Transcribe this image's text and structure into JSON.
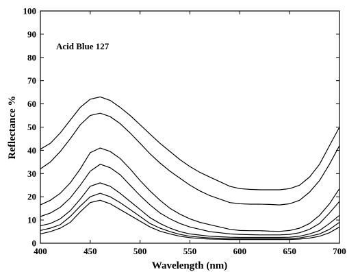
{
  "chart_data": {
    "type": "line",
    "title": "",
    "annotation": "Acid Blue 127",
    "xlabel": "Wavelength (nm)",
    "ylabel": "Reflectance %",
    "xlim": [
      400,
      700
    ],
    "ylim": [
      0,
      100
    ],
    "xticks": [
      400,
      450,
      500,
      550,
      600,
      650,
      700
    ],
    "yticks": [
      0,
      10,
      20,
      30,
      40,
      50,
      60,
      70,
      80,
      90,
      100
    ],
    "grid": false,
    "legend": "none",
    "x": [
      400,
      410,
      420,
      430,
      440,
      450,
      460,
      470,
      480,
      490,
      500,
      510,
      520,
      530,
      540,
      550,
      560,
      570,
      580,
      590,
      600,
      610,
      620,
      630,
      640,
      650,
      660,
      670,
      680,
      690,
      700
    ],
    "series": [
      {
        "values": [
          40.5,
          43,
          47.5,
          53,
          58.5,
          62,
          63,
          61.5,
          58.5,
          55,
          51,
          47,
          43,
          39.5,
          36,
          33,
          30.5,
          28.5,
          26.5,
          24.5,
          23.5,
          23.2,
          23,
          23,
          23,
          23.5,
          25,
          28.5,
          34,
          42,
          50
        ]
      },
      {
        "values": [
          32,
          35,
          39.5,
          45,
          51,
          55,
          56,
          54.5,
          51.5,
          47.5,
          43,
          38.5,
          34.5,
          31,
          28,
          25,
          22.5,
          20.5,
          19,
          17.5,
          17,
          16.8,
          16.8,
          16.7,
          16.5,
          17,
          18.5,
          22,
          27,
          34,
          42
        ]
      },
      {
        "values": [
          16.5,
          18.5,
          21.5,
          26,
          32,
          39,
          41,
          39.5,
          36.5,
          32,
          27,
          22.5,
          18.5,
          15,
          12.5,
          10.5,
          9,
          8,
          7,
          6,
          5.5,
          5.4,
          5.4,
          5.2,
          5.1,
          5.5,
          6.5,
          8.5,
          12,
          17,
          23.5
        ]
      },
      {
        "values": [
          11.5,
          13,
          15.5,
          19.5,
          25,
          31,
          34,
          32.5,
          29.5,
          25,
          20.5,
          16.5,
          13,
          10.5,
          8.5,
          7,
          6,
          5,
          4.5,
          4,
          3.8,
          3.7,
          3.6,
          3.6,
          3.6,
          3.8,
          4.5,
          6,
          8.5,
          13,
          18
        ]
      },
      {
        "values": [
          7.5,
          8.5,
          10.5,
          14,
          19,
          24.5,
          26,
          24.5,
          21.5,
          18,
          14.5,
          11,
          8.5,
          6.5,
          5,
          4,
          3.5,
          3,
          2.8,
          2.6,
          2.5,
          2.5,
          2.5,
          2.5,
          2.5,
          2.6,
          3,
          4,
          5.5,
          8.5,
          12
        ]
      },
      {
        "values": [
          5.5,
          6.5,
          8,
          11.5,
          16,
          20,
          21.5,
          20,
          17.5,
          14.5,
          11.5,
          8.5,
          6.5,
          5,
          3.8,
          3,
          2.6,
          2.3,
          2.1,
          2,
          2,
          2,
          2,
          2,
          2,
          2,
          2.3,
          3,
          4,
          6,
          9
        ]
      },
      {
        "values": [
          4,
          5,
          6.5,
          9,
          13.5,
          17.5,
          18.5,
          17,
          14.5,
          12,
          9.5,
          7,
          5.2,
          4,
          3,
          2.4,
          2,
          1.8,
          1.7,
          1.6,
          1.6,
          1.6,
          1.6,
          1.6,
          1.6,
          1.6,
          1.8,
          2.2,
          3,
          4.5,
          7
        ]
      }
    ]
  }
}
